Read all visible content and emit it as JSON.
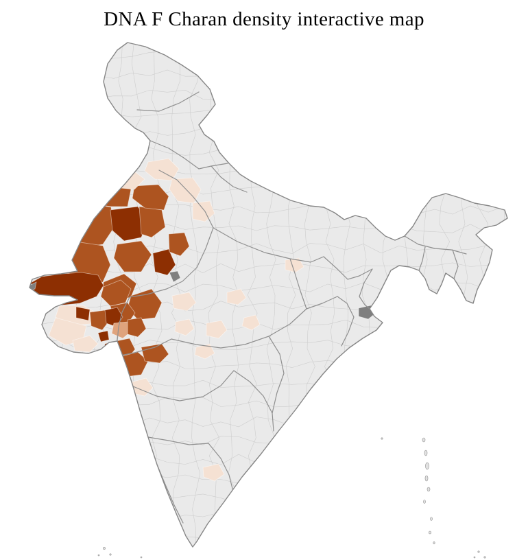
{
  "title": "DNA F Charan density interactive map",
  "map": {
    "base_fill": "#eaeaea",
    "no_data_fill": "#7f7f7f",
    "density_levels": {
      "2": "#f5e1d3",
      "3": "#dfa37d",
      "4": "#ad5420",
      "5": "#8d2f02",
      "nodata": "#7f7f7f"
    },
    "regions": {
      "r1": "4",
      "r2": "4",
      "r3": "4",
      "r4": "5",
      "r5": "4",
      "r6": "4",
      "r7": "4",
      "r8": "5",
      "r9": "4",
      "r10": "4",
      "r12": "2",
      "r14": "2",
      "r15": "2",
      "r16": "2",
      "r17": "4",
      "r18": "5",
      "r20": "4",
      "r21": "4",
      "r22": "2",
      "r23": "2",
      "r24": "5",
      "r25": "4",
      "r26": "5",
      "r27": "3",
      "r28": "4",
      "r29": "2",
      "r30": "5",
      "r31": "5",
      "r32": "4",
      "r33": "4",
      "r34": "4",
      "r35": "5",
      "r36": "5",
      "r37a": "2",
      "r37b": "2",
      "r37c": "2",
      "r37d": "2",
      "r38": "2",
      "r39": "2",
      "r40": "2",
      "r43": "2",
      "r45": "2",
      "g1": "nodata",
      "g2": "nodata",
      "g3": "nodata"
    }
  }
}
